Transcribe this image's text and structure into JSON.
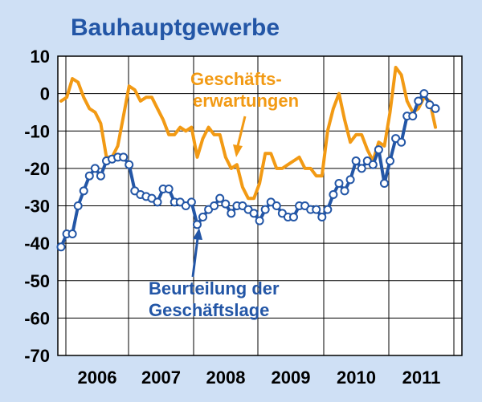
{
  "chart_data": {
    "type": "line",
    "title": "Bauhauptgewerbe",
    "xlabel": "",
    "ylabel": "",
    "ylim": [
      -70,
      10
    ],
    "yticks": [
      "10",
      "0",
      "-10",
      "-20",
      "-30",
      "-40",
      "-50",
      "-60",
      "-70"
    ],
    "year_labels": [
      "2006",
      "2007",
      "2008",
      "2009",
      "2010",
      "2011"
    ],
    "grid": true,
    "annotations": {
      "orange": [
        "Geschäfts-",
        "erwartungen"
      ],
      "blue": [
        "Beurteilung der",
        "Geschäftslage"
      ]
    },
    "x_start": "2005-07",
    "series": [
      {
        "name": "Geschäftserwartungen",
        "color": "#f29a14",
        "markers": false,
        "values": [
          -2,
          -1,
          4,
          3,
          -1,
          -4,
          -5,
          -8,
          -17,
          -17,
          -14,
          -6,
          2,
          1,
          -2,
          -1,
          -1,
          -4,
          -7,
          -11,
          -11,
          -9,
          -10,
          -9,
          -17,
          -12,
          -9,
          -11,
          -11,
          -17,
          -20,
          -19,
          -25,
          -28,
          -28,
          -24,
          -16,
          -16,
          -20,
          -20,
          -19,
          -18,
          -17,
          -20,
          -20,
          -22,
          -22,
          -10,
          -4,
          0,
          -7,
          -13,
          -11,
          -11,
          -15,
          -18,
          -13,
          -14,
          -5,
          7,
          5,
          -2,
          -5,
          -4,
          -1,
          -2,
          -9
        ]
      },
      {
        "name": "Beurteilung der Geschäftslage",
        "color": "#2356a6",
        "markers": true,
        "values": [
          -41,
          -37.5,
          -37.5,
          -30,
          -26,
          -22,
          -20,
          -22,
          -18,
          -17.5,
          -17,
          -17,
          -19,
          -26,
          -27,
          -27.5,
          -28,
          -29,
          -25.5,
          -25.5,
          -29,
          -29,
          -30,
          -29,
          -35,
          -33,
          -31,
          -30,
          -28,
          -29.5,
          -32,
          -30,
          -30,
          -31,
          -32,
          -34,
          -31,
          -29,
          -30,
          -32,
          -33,
          -33,
          -30,
          -30,
          -31,
          -31,
          -33,
          -31,
          -27,
          -24,
          -26,
          -23,
          -18,
          -20,
          -18,
          -19,
          -15,
          -24,
          -18,
          -12,
          -13,
          -6,
          -6,
          -2,
          0,
          -3,
          -4
        ]
      }
    ]
  }
}
